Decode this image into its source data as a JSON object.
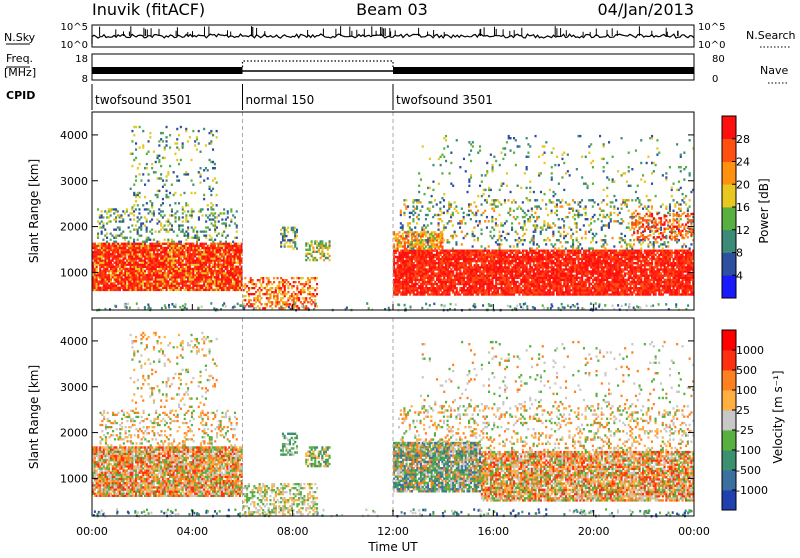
{
  "header": {
    "station": "Inuvik (fitACF)",
    "beam": "Beam 03",
    "date": "04/Jan/2013"
  },
  "panels": {
    "nsky": {
      "label": "N.Sky",
      "ticks": [
        "10^5",
        "10^0"
      ]
    },
    "nsearch": {
      "label": "N.Search",
      "ticks": [
        "10^5",
        "10^0"
      ]
    },
    "freq": {
      "label_top": "Freq.",
      "label_unit": "[MHz]",
      "ticks": [
        "18",
        "8"
      ]
    },
    "nave": {
      "label": "Nave",
      "ticks": [
        "80",
        "0"
      ]
    },
    "cpid": {
      "label": "CPID",
      "modes": [
        {
          "name": "twofsound 3501",
          "start_hour": 0,
          "end_hour": 6
        },
        {
          "name": "normal 150",
          "start_hour": 6,
          "end_hour": 12
        },
        {
          "name": "twofsound 3501",
          "start_hour": 12,
          "end_hour": 24
        }
      ]
    }
  },
  "chart_data": [
    {
      "type": "heatmap",
      "panel": "power",
      "ylabel": "Slant Range [km]",
      "xlabel": "",
      "xlim": [
        0,
        24
      ],
      "ylim": [
        180,
        4500
      ],
      "y_ticks": [
        "1000",
        "2000",
        "3000",
        "4000"
      ],
      "colorbar": {
        "label": "Power [dB]",
        "ticks": [
          "4",
          "8",
          "12",
          "16",
          "20",
          "24",
          "28"
        ],
        "colors": [
          "#1a1aff",
          "#2d4fa0",
          "#3c8a78",
          "#58b040",
          "#e8c820",
          "#ff9010",
          "#ff5010",
          "#ff1010"
        ]
      }
    },
    {
      "type": "heatmap",
      "panel": "velocity",
      "ylabel": "Slant Range [km]",
      "xlabel": "Time UT",
      "xlim": [
        0,
        24
      ],
      "ylim": [
        180,
        4500
      ],
      "y_ticks": [
        "1000",
        "2000",
        "3000",
        "4000"
      ],
      "x_ticks": [
        "00:00",
        "04:00",
        "08:00",
        "12:00",
        "16:00",
        "20:00",
        "00:00"
      ],
      "colorbar": {
        "label": "Velocity [m s⁻¹]",
        "ticks": [
          "1000",
          "500",
          "100",
          "25",
          "-25",
          "-100",
          "-500",
          "-1000"
        ],
        "colors": [
          "#2040b0",
          "#3a70a0",
          "#3c9070",
          "#58b040",
          "#c8c8c8",
          "#ffb040",
          "#ff8020",
          "#ff3010",
          "#ff0000"
        ]
      }
    }
  ],
  "regions": {
    "power": [
      {
        "t0": 0.0,
        "t1": 6.0,
        "r0": 600,
        "r1": 1650,
        "colors": [
          "#ff1010",
          "#ff3010",
          "#ff5010",
          "#ff1010",
          "#e8c820"
        ],
        "density": 0.92
      },
      {
        "t0": 0.2,
        "t1": 5.8,
        "r0": 1650,
        "r1": 2400,
        "colors": [
          "#58b040",
          "#3c8a78",
          "#e8c820",
          "#2d4fa0"
        ],
        "density": 0.25
      },
      {
        "t0": 1.5,
        "t1": 5.0,
        "r0": 2400,
        "r1": 4200,
        "colors": [
          "#58b040",
          "#2d4fa0",
          "#3c8a78",
          "#e8c820"
        ],
        "density": 0.1
      },
      {
        "t0": 6.0,
        "t1": 9.0,
        "r0": 200,
        "r1": 900,
        "colors": [
          "#ff5010",
          "#ff9010",
          "#ff1010",
          "#e8c820"
        ],
        "density": 0.45
      },
      {
        "t0": 8.5,
        "t1": 9.5,
        "r0": 1250,
        "r1": 1700,
        "colors": [
          "#e8c820",
          "#58b040",
          "#3c8a78",
          "#ff9010"
        ],
        "density": 0.55
      },
      {
        "t0": 7.5,
        "t1": 8.2,
        "r0": 1500,
        "r1": 2000,
        "colors": [
          "#2d4fa0",
          "#3c8a78",
          "#e8c820"
        ],
        "density": 0.45
      },
      {
        "t0": 12.0,
        "t1": 24.0,
        "r0": 500,
        "r1": 1500,
        "colors": [
          "#ff1010",
          "#ff3010",
          "#ff5010",
          "#ff1010"
        ],
        "density": 0.9
      },
      {
        "t0": 12.0,
        "t1": 14.0,
        "r0": 1500,
        "r1": 1900,
        "colors": [
          "#ff5010",
          "#ff9010",
          "#e8c820"
        ],
        "density": 0.7
      },
      {
        "t0": 12.2,
        "t1": 24.0,
        "r0": 1500,
        "r1": 2600,
        "colors": [
          "#58b040",
          "#3c8a78",
          "#e8c820",
          "#ff9010",
          "#2d4fa0"
        ],
        "density": 0.2
      },
      {
        "t0": 21.5,
        "t1": 24.0,
        "r0": 1700,
        "r1": 2300,
        "colors": [
          "#ff1010",
          "#ff5010",
          "#ff9010"
        ],
        "density": 0.35
      },
      {
        "t0": 13.0,
        "t1": 24.0,
        "r0": 2600,
        "r1": 4000,
        "colors": [
          "#58b040",
          "#2d4fa0",
          "#e8c820",
          "#3c8a78"
        ],
        "density": 0.05
      }
    ],
    "velocity": [
      {
        "t0": 0.0,
        "t1": 6.0,
        "r0": 600,
        "r1": 1700,
        "colors": [
          "#ff8020",
          "#ffb040",
          "#c8c8c8",
          "#58b040",
          "#ff3010"
        ],
        "density": 0.9
      },
      {
        "t0": 0.3,
        "t1": 5.8,
        "r0": 1700,
        "r1": 2500,
        "colors": [
          "#ff8020",
          "#c8c8c8",
          "#ffb040",
          "#58b040"
        ],
        "density": 0.25
      },
      {
        "t0": 1.5,
        "t1": 5.0,
        "r0": 2500,
        "r1": 4200,
        "colors": [
          "#ff8020",
          "#c8c8c8",
          "#58b040",
          "#ffb040"
        ],
        "density": 0.1
      },
      {
        "t0": 6.0,
        "t1": 9.0,
        "r0": 200,
        "r1": 900,
        "colors": [
          "#c8c8c8",
          "#58b040",
          "#ffb040"
        ],
        "density": 0.45
      },
      {
        "t0": 8.5,
        "t1": 9.5,
        "r0": 1250,
        "r1": 1700,
        "colors": [
          "#58b040",
          "#3c9070",
          "#ffb040"
        ],
        "density": 0.5
      },
      {
        "t0": 7.5,
        "t1": 8.2,
        "r0": 1500,
        "r1": 2000,
        "colors": [
          "#58b040",
          "#3c9070",
          "#c8c8c8"
        ],
        "density": 0.45
      },
      {
        "t0": 12.0,
        "t1": 15.5,
        "r0": 700,
        "r1": 1800,
        "colors": [
          "#3c9070",
          "#58b040",
          "#c8c8c8",
          "#3a70a0",
          "#ff8020"
        ],
        "density": 0.85
      },
      {
        "t0": 15.5,
        "t1": 24.0,
        "r0": 500,
        "r1": 1600,
        "colors": [
          "#ff8020",
          "#ffb040",
          "#ff3010",
          "#c8c8c8",
          "#58b040"
        ],
        "density": 0.85
      },
      {
        "t0": 12.2,
        "t1": 24.0,
        "r0": 1600,
        "r1": 2600,
        "colors": [
          "#ff8020",
          "#c8c8c8",
          "#58b040",
          "#ffb040"
        ],
        "density": 0.2
      },
      {
        "t0": 13.0,
        "t1": 24.0,
        "r0": 2600,
        "r1": 4000,
        "colors": [
          "#58b040",
          "#ff8020",
          "#c8c8c8"
        ],
        "density": 0.05
      }
    ]
  }
}
